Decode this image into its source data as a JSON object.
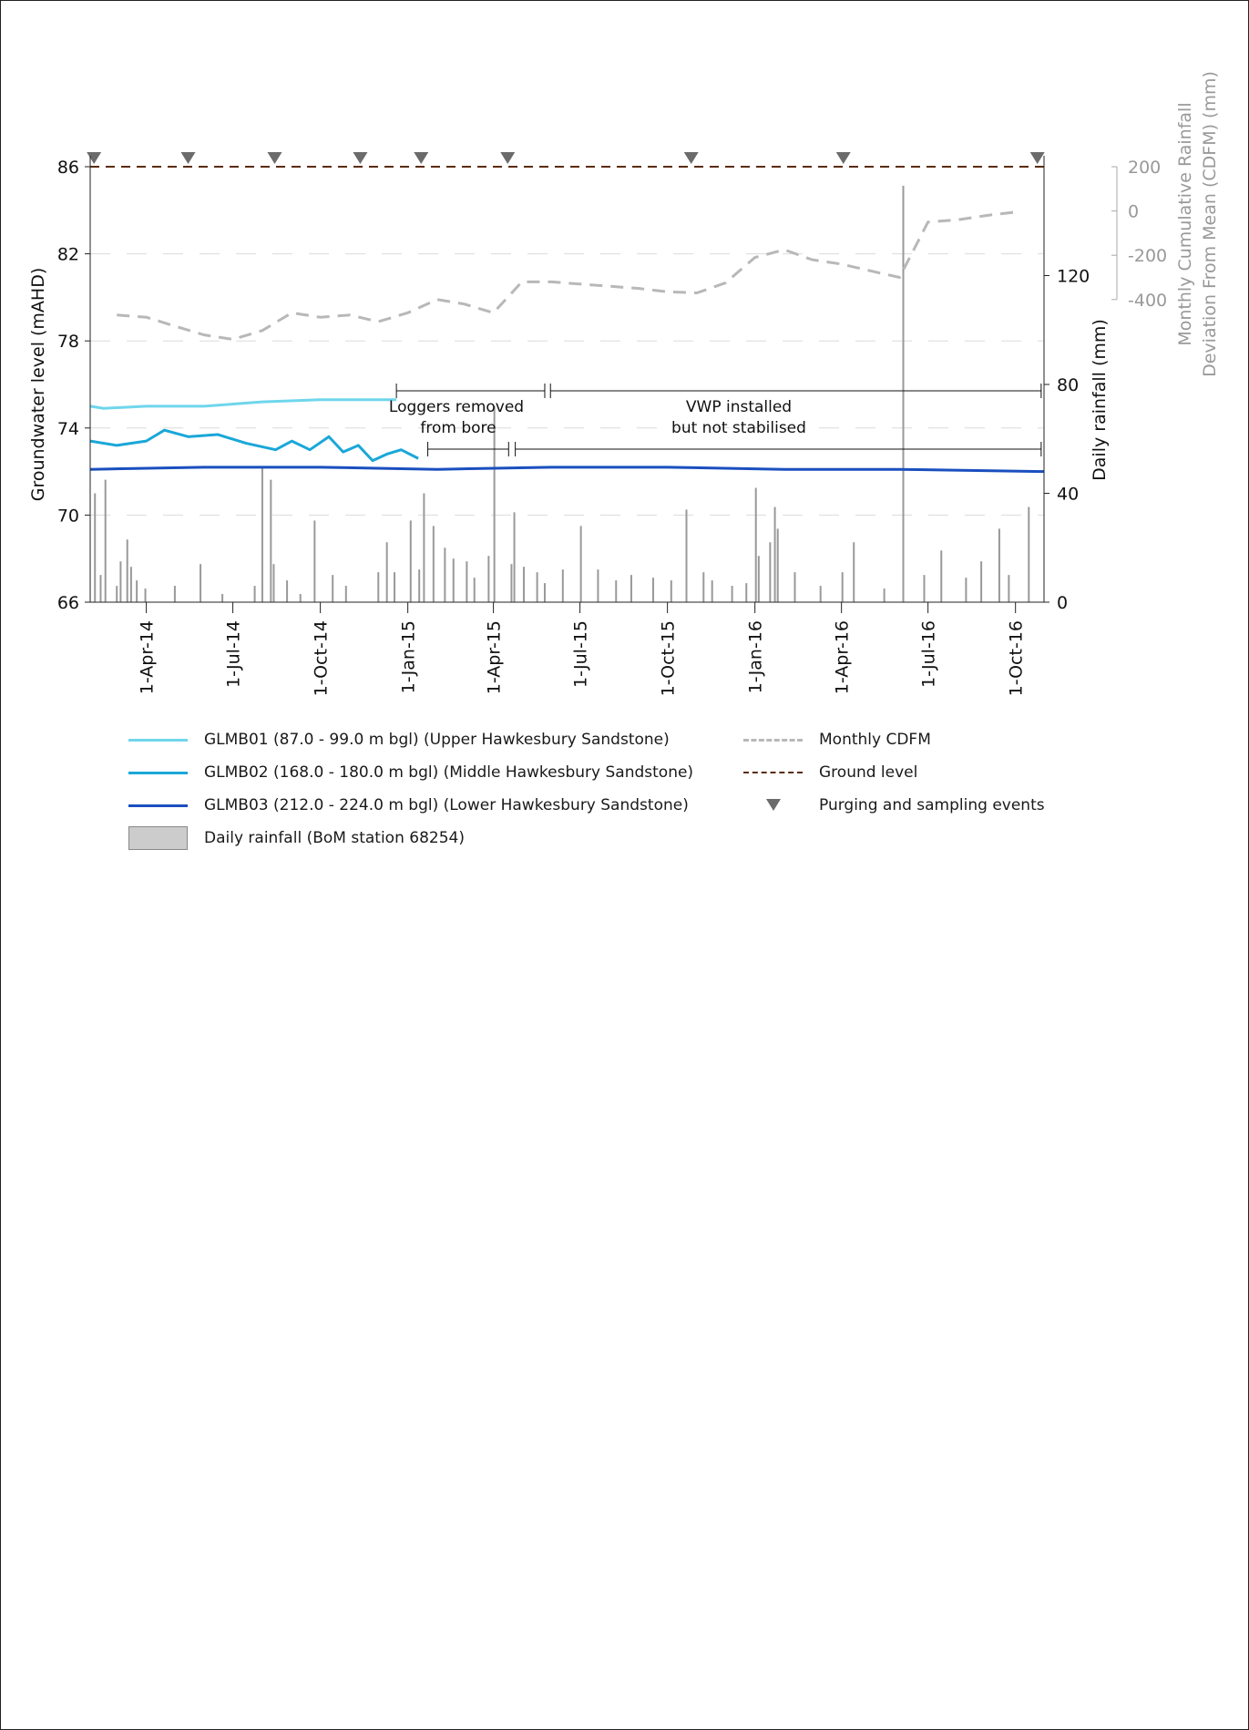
{
  "chart_data": {
    "type": "line",
    "y_left": {
      "label": "Groundwater level (mAHD)",
      "range": [
        66,
        86
      ],
      "ticks": [
        "66",
        "70",
        "74",
        "78",
        "82",
        "86"
      ]
    },
    "y_right_rain": {
      "label": "Daily rainfall (mm)",
      "range": [
        0,
        160
      ],
      "ticks": [
        "0",
        "40",
        "80",
        "120"
      ]
    },
    "y_right_cdfm": {
      "label": "Monthly Cumulative Rainfall Deviation From Mean (CDFM) (mm)",
      "label_lines": [
        "Monthly Cumulative Rainfall",
        "Deviation From Mean (CDFM) (mm)"
      ],
      "range": [
        -400,
        200
      ],
      "ticks": [
        "200",
        "0",
        "-200",
        "-400"
      ]
    },
    "x": {
      "range": [
        "2014-02-01",
        "2016-10-31"
      ],
      "ticks": [
        "1-Apr-14",
        "1-Jul-14",
        "1-Oct-14",
        "1-Jan-15",
        "1-Apr-15",
        "1-Jul-15",
        "1-Oct-15",
        "1-Jan-16",
        "1-Apr-16",
        "1-Jul-16",
        "1-Oct-16"
      ]
    },
    "grid": "horizontal dashed",
    "series": [
      {
        "name": "GLMB01 (87.0 - 99.0 m bgl) (Upper Hawkesbury Sandstone)",
        "color": "#6fd6ec",
        "x": [
          "2014-02-01",
          "2014-02-15",
          "2014-04-01",
          "2014-06-01",
          "2014-08-01",
          "2014-10-01",
          "2014-11-15",
          "2014-12-20"
        ],
        "y": [
          75.0,
          74.9,
          75.0,
          75.0,
          75.2,
          75.3,
          75.3,
          75.3
        ]
      },
      {
        "name": "GLMB02 (168.0 - 180.0 m bgl) (Middle Hawkesbury Sandstone)",
        "color": "#1aa7d8",
        "x": [
          "2014-02-01",
          "2014-03-01",
          "2014-04-01",
          "2014-04-20",
          "2014-05-15",
          "2014-06-15",
          "2014-07-15",
          "2014-08-15",
          "2014-09-01",
          "2014-09-20",
          "2014-10-10",
          "2014-10-25",
          "2014-11-10",
          "2014-11-25",
          "2014-12-10",
          "2014-12-25",
          "2015-01-12"
        ],
        "y": [
          73.4,
          73.2,
          73.4,
          73.9,
          73.6,
          73.7,
          73.3,
          73.0,
          73.4,
          73.0,
          73.6,
          72.9,
          73.2,
          72.5,
          72.8,
          73.0,
          72.6
        ]
      },
      {
        "name": "GLMB03 (212.0 - 224.0 m bgl) (Lower Hawkesbury Sandstone)",
        "color": "#1a4fbf",
        "x": [
          "2014-02-01",
          "2014-06-01",
          "2014-10-01",
          "2015-02-01",
          "2015-06-01",
          "2015-10-01",
          "2016-02-01",
          "2016-06-01",
          "2016-10-31"
        ],
        "y": [
          72.1,
          72.2,
          72.2,
          72.1,
          72.2,
          72.2,
          72.1,
          72.1,
          72.0
        ]
      },
      {
        "name": "Monthly CDFM",
        "color": "#b8b8b8",
        "x": [
          "2014-03-01",
          "2014-04-01",
          "2014-05-01",
          "2014-06-01",
          "2014-07-01",
          "2014-08-01",
          "2014-09-01",
          "2014-10-01",
          "2014-11-01",
          "2014-12-01",
          "2015-01-01",
          "2015-02-01",
          "2015-03-01",
          "2015-04-01",
          "2015-05-01",
          "2015-06-01",
          "2015-07-01",
          "2015-08-01",
          "2015-09-01",
          "2015-10-01",
          "2015-11-01",
          "2015-12-01",
          "2016-01-01",
          "2016-02-01",
          "2016-03-01",
          "2016-04-01",
          "2016-05-01",
          "2016-06-01",
          "2016-07-01",
          "2016-08-01",
          "2016-09-01",
          "2016-10-01"
        ],
        "y": [
          -470,
          -480,
          -520,
          -560,
          -580,
          -540,
          -460,
          -480,
          -470,
          -500,
          -460,
          -400,
          -420,
          -460,
          -320,
          -320,
          -330,
          -340,
          -350,
          -365,
          -370,
          -325,
          -210,
          -175,
          -220,
          -240,
          -270,
          -300,
          -50,
          -40,
          -20,
          -5
        ]
      },
      {
        "name": "Ground level",
        "color": "#5a2c0c",
        "x": [
          "2014-02-01",
          "2016-10-31"
        ],
        "y": [
          86,
          86
        ]
      },
      {
        "name": "Daily rainfall (BoM station 68254)",
        "color": "#999999",
        "x": [
          "2014-02-06",
          "2014-02-12",
          "2014-02-17",
          "2014-03-01",
          "2014-03-05",
          "2014-03-12",
          "2014-03-16",
          "2014-03-22",
          "2014-03-31",
          "2014-05-01",
          "2014-05-28",
          "2014-06-20",
          "2014-07-24",
          "2014-08-01",
          "2014-08-10",
          "2014-08-13",
          "2014-08-27",
          "2014-09-10",
          "2014-09-25",
          "2014-10-14",
          "2014-10-28",
          "2014-12-01",
          "2014-12-10",
          "2014-12-18",
          "2015-01-04",
          "2015-01-13",
          "2015-01-18",
          "2015-01-28",
          "2015-02-09",
          "2015-02-18",
          "2015-03-04",
          "2015-03-12",
          "2015-03-27",
          "2015-04-02",
          "2015-04-20",
          "2015-04-23",
          "2015-05-03",
          "2015-05-17",
          "2015-05-25",
          "2015-06-13",
          "2015-07-02",
          "2015-07-20",
          "2015-08-08",
          "2015-08-24",
          "2015-09-16",
          "2015-10-05",
          "2015-10-21",
          "2015-11-08",
          "2015-11-17",
          "2015-12-08",
          "2015-12-23",
          "2016-01-02",
          "2016-01-05",
          "2016-01-17",
          "2016-01-22",
          "2016-01-25",
          "2016-02-12",
          "2016-03-10",
          "2016-04-02",
          "2016-04-14",
          "2016-05-16",
          "2016-06-05",
          "2016-06-27",
          "2016-07-15",
          "2016-08-10",
          "2016-08-26",
          "2016-09-14",
          "2016-09-24",
          "2016-10-15"
        ],
        "y": [
          40,
          10,
          45,
          6,
          15,
          23,
          13,
          8,
          5,
          6,
          14,
          3,
          6,
          50,
          45,
          14,
          8,
          3,
          30,
          10,
          6,
          11,
          22,
          11,
          30,
          12,
          40,
          28,
          20,
          16,
          15,
          9,
          17,
          72,
          14,
          33,
          13,
          11,
          7,
          12,
          28,
          12,
          8,
          10,
          9,
          8,
          34,
          11,
          8,
          6,
          7,
          42,
          17,
          22,
          35,
          27,
          11,
          6,
          11,
          22,
          5,
          153,
          10,
          19,
          9,
          15,
          27,
          10,
          35
        ]
      },
      {
        "name": "Purging and sampling events",
        "color": "#6b6b6b",
        "x": [
          "2014-02-05",
          "2014-05-15",
          "2014-08-14",
          "2014-11-12",
          "2015-01-15",
          "2015-04-16",
          "2015-10-26",
          "2016-04-03",
          "2016-10-24"
        ]
      }
    ],
    "annotations": [
      {
        "text": "Loggers removed from bore",
        "lines": [
          "Loggers removed",
          "from bore"
        ]
      },
      {
        "text": "VWP installed but not stabilised",
        "lines": [
          "VWP installed",
          "but not stabilised"
        ]
      }
    ]
  }
}
